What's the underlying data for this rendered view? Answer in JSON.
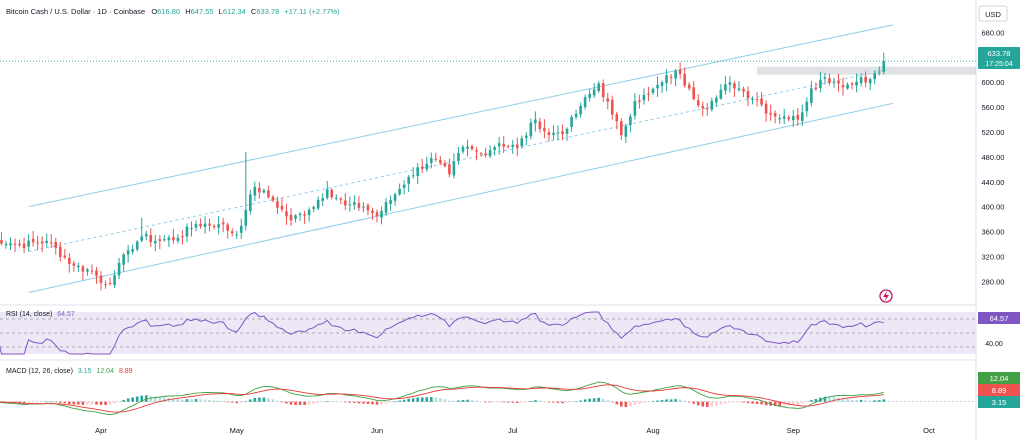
{
  "header": {
    "symbol": "Bitcoin Cash / U.S. Dollar · 1D · Coinbase",
    "open_label": "O",
    "open": "616.80",
    "high_label": "H",
    "high": "647.55",
    "low_label": "L",
    "low": "612.34",
    "close_label": "C",
    "close": "633.78",
    "change": "+17.11 (+2.77%)"
  },
  "currency": "USD",
  "price_tag": {
    "price": "633.78",
    "countdown": "17:25:04"
  },
  "rsi": {
    "label": "RSI (14, close)",
    "value": "64.57",
    "levels": [
      70,
      50,
      30
    ],
    "tick": "40.00"
  },
  "macd": {
    "label": "MACD (12, 26, close)",
    "hist": "3.15",
    "macd": "12.04",
    "signal": "8.89"
  },
  "colors": {
    "up": "#26a69a",
    "down": "#ef5350",
    "channel": "#90cde9",
    "rsi_line": "#7e57c2",
    "rsi_band": "#ede7f6",
    "macd_line": "#43a047",
    "signal_line": "#e53935",
    "hist_up_strong": "#26a69a",
    "hist_up_weak": "#b2dfdb",
    "hist_down_strong": "#ef5350",
    "hist_down_weak": "#ffcdd2"
  },
  "chart_data": {
    "type": "candlestick",
    "title": "Bitcoin Cash / U.S. Dollar · 1D · Coinbase",
    "y_axis_ticks": [
      280,
      320,
      360,
      400,
      440,
      480,
      520,
      560,
      600,
      680
    ],
    "ylim": [
      250,
      700
    ],
    "x_axis_ticks": [
      "Apr",
      "May",
      "Jun",
      "Jul",
      "Aug",
      "Sep",
      "Oct"
    ],
    "x_tick_day_index": [
      0,
      30,
      61,
      91,
      122,
      153,
      183
    ],
    "first_candle_day_index": -25,
    "last_candle": {
      "open": 616.8,
      "high": 647.55,
      "low": 612.34,
      "close": 633.78
    },
    "anchor_closes": [
      [
        -25,
        352
      ],
      [
        -18,
        338
      ],
      [
        -12,
        345
      ],
      [
        -6,
        305
      ],
      [
        -2,
        296
      ],
      [
        1,
        275
      ],
      [
        3,
        290
      ],
      [
        6,
        330
      ],
      [
        9,
        352
      ],
      [
        12,
        345
      ],
      [
        17,
        350
      ],
      [
        21,
        372
      ],
      [
        26,
        372
      ],
      [
        30,
        355
      ],
      [
        32,
        395
      ],
      [
        34,
        432
      ],
      [
        38,
        410
      ],
      [
        42,
        378
      ],
      [
        46,
        395
      ],
      [
        50,
        428
      ],
      [
        54,
        402
      ],
      [
        58,
        400
      ],
      [
        61,
        385
      ],
      [
        65,
        420
      ],
      [
        68,
        448
      ],
      [
        73,
        478
      ],
      [
        77,
        452
      ],
      [
        80,
        496
      ],
      [
        84,
        485
      ],
      [
        88,
        502
      ],
      [
        92,
        495
      ],
      [
        96,
        540
      ],
      [
        99,
        515
      ],
      [
        103,
        525
      ],
      [
        106,
        562
      ],
      [
        110,
        598
      ],
      [
        113,
        548
      ],
      [
        115,
        515
      ],
      [
        118,
        570
      ],
      [
        121,
        580
      ],
      [
        124,
        600
      ],
      [
        127,
        618
      ],
      [
        130,
        590
      ],
      [
        133,
        558
      ],
      [
        136,
        575
      ],
      [
        139,
        600
      ],
      [
        142,
        585
      ],
      [
        145,
        572
      ],
      [
        148,
        548
      ],
      [
        151,
        545
      ],
      [
        154,
        540
      ],
      [
        157,
        590
      ],
      [
        160,
        608
      ],
      [
        163,
        598
      ],
      [
        166,
        596
      ],
      [
        168,
        608
      ],
      [
        170,
        605
      ],
      [
        172,
        617
      ],
      [
        173,
        633.78
      ]
    ],
    "channel_upper": {
      "start": [
        -16,
        400
      ],
      "end": [
        175,
        692
      ]
    },
    "channel_middle": {
      "start": [
        -16,
        328
      ],
      "end": [
        175,
        622
      ]
    },
    "channel_lower": {
      "start": [
        -16,
        262
      ],
      "end": [
        175,
        566
      ]
    },
    "resistance_zone": [
      612,
      625
    ],
    "rsi_range": [
      20,
      80
    ],
    "macd_range": [
      -30,
      40
    ]
  }
}
